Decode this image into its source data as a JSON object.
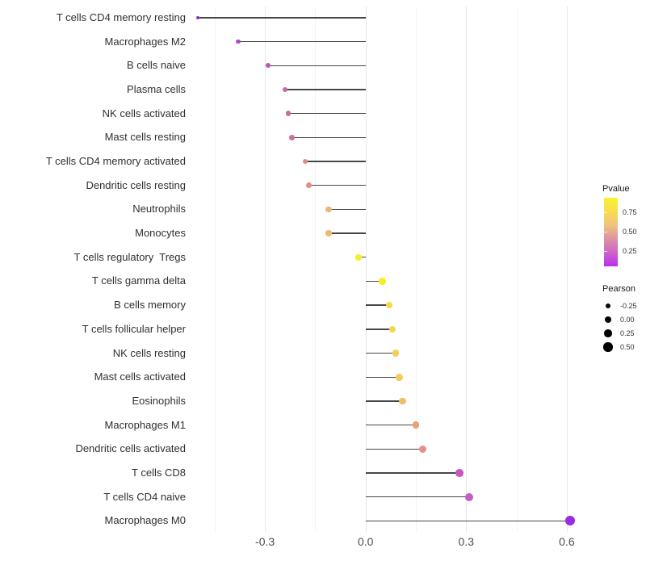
{
  "chart_data": {
    "type": "lollipop",
    "title": "",
    "xlabel": "",
    "ylabel": "",
    "xlim": [
      -0.52,
      0.66
    ],
    "x_ticks": [
      {
        "label": "-0.3",
        "value": -0.3
      },
      {
        "label": "0.0",
        "value": 0.0
      },
      {
        "label": "0.3",
        "value": 0.3
      },
      {
        "label": "0.6",
        "value": 0.6
      }
    ],
    "grid": {
      "major_values": [
        -0.3,
        0.0,
        0.3,
        0.6
      ],
      "minor_values": [
        -0.45,
        -0.15,
        0.15,
        0.45
      ]
    },
    "rows": [
      {
        "label": "T cells CD4 memory resting",
        "pearson": -0.5,
        "pvalue_approx": 0.2,
        "color": "#8833cc"
      },
      {
        "label": "Macrophages M2",
        "pearson": -0.38,
        "pvalue_approx": 0.27,
        "color": "#a64fc3"
      },
      {
        "label": "B cells naive",
        "pearson": -0.29,
        "pvalue_approx": 0.33,
        "color": "#b656b6"
      },
      {
        "label": "Plasma cells",
        "pearson": -0.24,
        "pvalue_approx": 0.38,
        "color": "#c667ab"
      },
      {
        "label": "NK cells activated",
        "pearson": -0.23,
        "pvalue_approx": 0.41,
        "color": "#cc6da0"
      },
      {
        "label": "Mast cells resting",
        "pearson": -0.22,
        "pvalue_approx": 0.42,
        "color": "#ce709c"
      },
      {
        "label": "T cells CD4 memory activated",
        "pearson": -0.18,
        "pvalue_approx": 0.52,
        "color": "#de8b87"
      },
      {
        "label": "Dendritic cells resting",
        "pearson": -0.17,
        "pvalue_approx": 0.53,
        "color": "#e18e83"
      },
      {
        "label": "Neutrophils",
        "pearson": -0.11,
        "pvalue_approx": 0.66,
        "color": "#ecb778"
      },
      {
        "label": "Monocytes",
        "pearson": -0.11,
        "pvalue_approx": 0.66,
        "color": "#ecb878"
      },
      {
        "label": "T cells regulatory  Tregs",
        "pearson": -0.02,
        "pvalue_approx": 0.93,
        "color": "#f7ee27"
      },
      {
        "label": "T cells gamma delta",
        "pearson": 0.05,
        "pvalue_approx": 0.94,
        "color": "#f6ef20"
      },
      {
        "label": "B cells memory",
        "pearson": 0.07,
        "pvalue_approx": 0.83,
        "color": "#f6d84e"
      },
      {
        "label": "T cells follicular helper",
        "pearson": 0.08,
        "pvalue_approx": 0.82,
        "color": "#f5d650"
      },
      {
        "label": "NK cells resting",
        "pearson": 0.09,
        "pvalue_approx": 0.79,
        "color": "#f4cf56"
      },
      {
        "label": "Mast cells activated",
        "pearson": 0.1,
        "pvalue_approx": 0.78,
        "color": "#f4cd58"
      },
      {
        "label": "Eosinophils",
        "pearson": 0.11,
        "pvalue_approx": 0.71,
        "color": "#f0bd67"
      },
      {
        "label": "Macrophages M1",
        "pearson": 0.15,
        "pvalue_approx": 0.61,
        "color": "#e8a276"
      },
      {
        "label": "Dendritic cells activated",
        "pearson": 0.17,
        "pvalue_approx": 0.56,
        "color": "#e39185"
      },
      {
        "label": "T cells CD8",
        "pearson": 0.28,
        "pvalue_approx": 0.32,
        "color": "#c757be"
      },
      {
        "label": "T cells CD4 naive",
        "pearson": 0.31,
        "pvalue_approx": 0.34,
        "color": "#c65cc4"
      },
      {
        "label": "Macrophages M0",
        "pearson": 0.61,
        "pvalue_approx": 0.1,
        "color": "#9a2ce2"
      }
    ],
    "legend_pvalue": {
      "title": "Pvalue",
      "ticks": [
        {
          "label": "0.75",
          "value": 0.75
        },
        {
          "label": "0.50",
          "value": 0.5
        },
        {
          "label": "0.25",
          "value": 0.25
        }
      ],
      "range_top_to_bottom": [
        0.95,
        0.05
      ],
      "gradient_top_to_bottom": [
        "#fbf32c",
        "#f7dd52",
        "#efc37e",
        "#de92a4",
        "#cd64c6",
        "#bc2cf2"
      ]
    },
    "legend_pearson": {
      "title": "Pearson",
      "items": [
        {
          "label": "-0.25",
          "value": -0.25
        },
        {
          "label": "0.00",
          "value": 0.0
        },
        {
          "label": "0.25",
          "value": 0.25
        },
        {
          "label": "0.50",
          "value": 0.5
        }
      ],
      "dot_color": "#000000"
    }
  },
  "colors": {
    "background": "#ffffff",
    "stem": "#474747",
    "axis_text": "#4d4d4d",
    "label_text": "#303030",
    "grid_major": "#e7e7e7",
    "grid_minor": "#f4f4f4"
  }
}
